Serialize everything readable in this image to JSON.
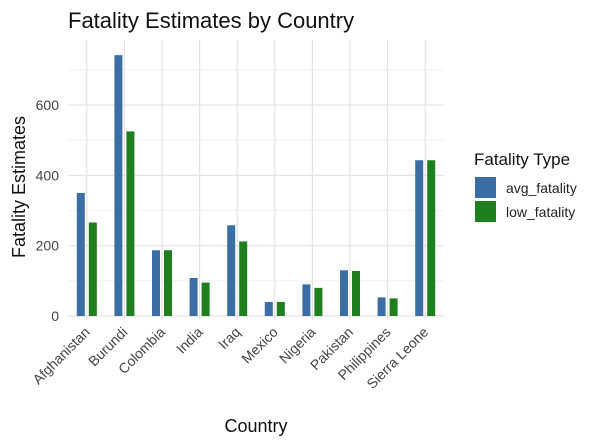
{
  "chart_data": {
    "type": "bar",
    "title": "Fatality Estimates by Country",
    "xlabel": "Country",
    "ylabel": "Fatality Estimates",
    "categories": [
      "Afghanistan",
      "Burundi",
      "Colombia",
      "India",
      "Iraq",
      "Mexico",
      "Nigeria",
      "Pakistan",
      "Philippines",
      "Sierra Leone"
    ],
    "series": [
      {
        "name": "avg_fatality",
        "color": "#3a6ea5",
        "values": [
          350,
          742,
          187,
          108,
          258,
          40,
          90,
          130,
          53,
          443
        ]
      },
      {
        "name": "low_fatality",
        "color": "#1f7f1f",
        "values": [
          266,
          525,
          187,
          95,
          212,
          40,
          80,
          128,
          50,
          443
        ]
      }
    ],
    "ylim": [
      0,
      760
    ],
    "yticks": [
      0,
      200,
      400,
      600
    ],
    "grid": true,
    "legend": {
      "title": "Fatality Type",
      "position": "right"
    }
  }
}
